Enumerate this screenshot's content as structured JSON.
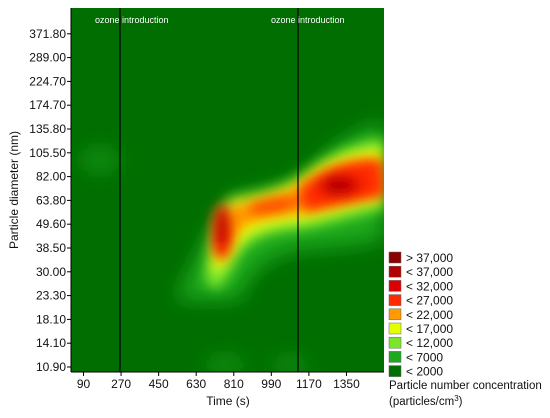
{
  "chart_data": {
    "type": "heatmap",
    "title": "",
    "xlabel": "Time (s)",
    "ylabel": "Particle diameter (nm)",
    "x_ticks": [
      "90",
      "270",
      "450",
      "630",
      "810",
      "990",
      "1170",
      "1350"
    ],
    "x_tick_values": [
      90,
      270,
      450,
      630,
      810,
      990,
      1170,
      1350
    ],
    "xlim": [
      30,
      1530
    ],
    "y_ticks": [
      "10.90",
      "14.10",
      "18.10",
      "23.30",
      "30.00",
      "38.50",
      "49.60",
      "63.80",
      "82.00",
      "105.50",
      "135.80",
      "174.70",
      "224.70",
      "289.00",
      "371.80"
    ],
    "y_scale": "log",
    "ylim": [
      10.9,
      478
    ],
    "annotations": [
      {
        "text": "ozone introduction",
        "x": 270
      },
      {
        "text": "ozone introduction",
        "x": 1080
      }
    ],
    "legend": {
      "placement": "bottom-right",
      "title": "Particle number concentration",
      "unit_prefix": "(particles/cm",
      "unit_sup": "3",
      "unit_suffix": ")",
      "entries": [
        {
          "label": "> 37,000",
          "color": "#8b0000"
        },
        {
          "label": "< 37,000",
          "color": "#b30000"
        },
        {
          "label": "< 32,000",
          "color": "#dd0000"
        },
        {
          "label": "< 27,000",
          "color": "#ff2a00"
        },
        {
          "label": "< 22,000",
          "color": "#ff9a00"
        },
        {
          "label": "< 17,000",
          "color": "#e6ff00"
        },
        {
          "label": "< 12,000",
          "color": "#7ae62a"
        },
        {
          "label": "< 7000",
          "color": "#1ea81e"
        },
        {
          "label": "< 2000",
          "color": "#006e00"
        }
      ]
    },
    "hotspots": [
      {
        "x": 730,
        "y": 43,
        "level": 8
      },
      {
        "x": 730,
        "y": 36,
        "level": 6
      },
      {
        "x": 745,
        "y": 52,
        "level": 5
      },
      {
        "x": 1280,
        "y": 73,
        "level": 7
      },
      {
        "x": 1380,
        "y": 75,
        "level": 6
      },
      {
        "x": 1200,
        "y": 78,
        "level": 5
      },
      {
        "x": 1470,
        "y": 80,
        "level": 4
      },
      {
        "x": 950,
        "y": 62,
        "level": 4
      },
      {
        "x": 870,
        "y": 57,
        "level": 4
      }
    ]
  }
}
